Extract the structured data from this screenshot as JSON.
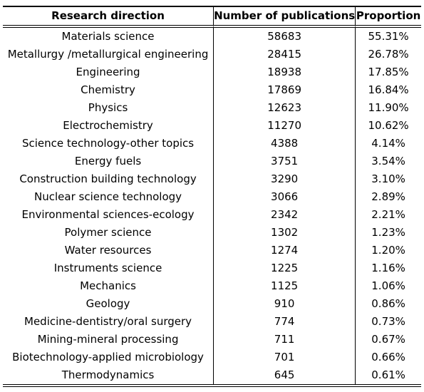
{
  "table": {
    "headers": [
      "Research direction",
      "Number of publications",
      "Proportion"
    ],
    "rows": [
      [
        "Materials science",
        "58683",
        "55.31%"
      ],
      [
        "Metallurgy /metallurgical engineering",
        "28415",
        "26.78%"
      ],
      [
        "Engineering",
        "18938",
        "17.85%"
      ],
      [
        "Chemistry",
        "17869",
        "16.84%"
      ],
      [
        "Physics",
        "12623",
        "11.90%"
      ],
      [
        "Electrochemistry",
        "11270",
        "10.62%"
      ],
      [
        "Science technology-other topics",
        "4388",
        "4.14%"
      ],
      [
        "Energy fuels",
        "3751",
        "3.54%"
      ],
      [
        "Construction building technology",
        "3290",
        "3.10%"
      ],
      [
        "Nuclear science technology",
        "3066",
        "2.89%"
      ],
      [
        "Environmental sciences-ecology",
        "2342",
        "2.21%"
      ],
      [
        "Polymer science",
        "1302",
        "1.23%"
      ],
      [
        "Water resources",
        "1274",
        "1.20%"
      ],
      [
        "Instruments science",
        "1225",
        "1.16%"
      ],
      [
        "Mechanics",
        "1125",
        "1.06%"
      ],
      [
        "Geology",
        "910",
        "0.86%"
      ],
      [
        "Medicine-dentistry/oral surgery",
        "774",
        "0.73%"
      ],
      [
        "Mining-mineral processing",
        "711",
        "0.67%"
      ],
      [
        "Biotechnology-applied microbiology",
        "701",
        "0.66%"
      ],
      [
        "Thermodynamics",
        "645",
        "0.61%"
      ]
    ]
  }
}
